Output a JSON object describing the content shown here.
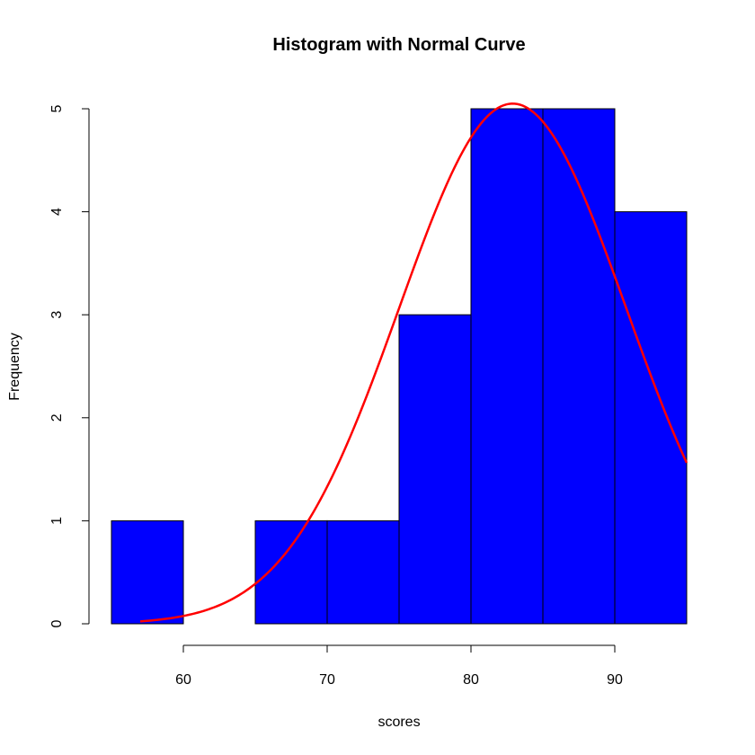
{
  "chart_data": {
    "type": "bar",
    "subtype": "histogram",
    "title": "Histogram with Normal Curve",
    "xlabel": "scores",
    "ylabel": "Frequency",
    "bins": [
      {
        "start": 55,
        "end": 60,
        "count": 1
      },
      {
        "start": 60,
        "end": 65,
        "count": 0
      },
      {
        "start": 65,
        "end": 70,
        "count": 1
      },
      {
        "start": 70,
        "end": 75,
        "count": 1
      },
      {
        "start": 75,
        "end": 80,
        "count": 3
      },
      {
        "start": 80,
        "end": 85,
        "count": 5
      },
      {
        "start": 85,
        "end": 90,
        "count": 5
      },
      {
        "start": 90,
        "end": 95,
        "count": 4
      }
    ],
    "xlim": [
      55,
      95
    ],
    "ylim": [
      0,
      5
    ],
    "x_ticks": [
      60,
      70,
      80,
      90
    ],
    "y_ticks": [
      0,
      1,
      2,
      3,
      4,
      5
    ],
    "bar_color": "#0000ff",
    "bar_border_color": "#000000",
    "normal_curve": {
      "color": "#ff0000",
      "mean": 82.9,
      "sd": 7.9,
      "scale": 100,
      "x_range": [
        57,
        95
      ]
    },
    "grid": false
  }
}
